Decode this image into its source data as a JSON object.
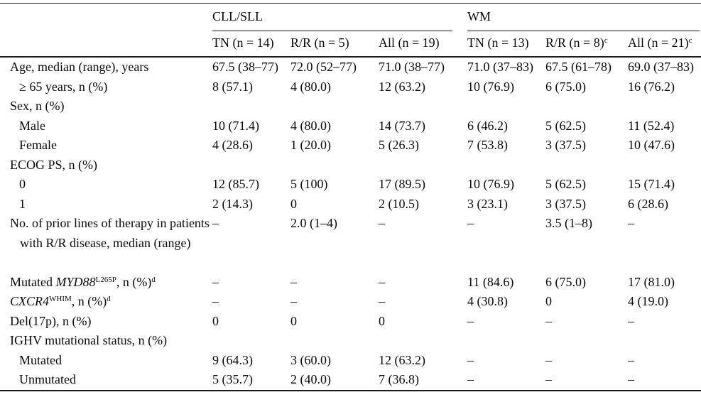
{
  "colors": {
    "background": "#ffffff",
    "text": "#0a0a0a",
    "rule": "#1c1c1c"
  },
  "table": {
    "groups": [
      {
        "label": "CLL/SLL"
      },
      {
        "label": "WM"
      }
    ],
    "sub_headers": [
      {
        "text": "TN (n = 14)",
        "sup": ""
      },
      {
        "text": "R/R (n = 5)",
        "sup": ""
      },
      {
        "text": "All (n = 19)",
        "sup": ""
      },
      {
        "text": "TN (n = 13)",
        "sup": ""
      },
      {
        "text": "R/R (n = 8)",
        "sup": "c"
      },
      {
        "text": "All (n = 21)",
        "sup": "c"
      }
    ],
    "rows": [
      {
        "label": [
          {
            "t": "Age, median (range), years"
          }
        ],
        "indent": 0,
        "cells": [
          "67.5 (38–77)",
          "72.0 (52–77)",
          "71.0 (38–77)",
          "71.0 (37–83)",
          "67.5 (61–78)",
          "69.0 (37–83)"
        ]
      },
      {
        "label": [
          {
            "t": "≥ 65 years, n (%)"
          }
        ],
        "indent": 1,
        "cells": [
          "8 (57.1)",
          "4 (80.0)",
          "12 (63.2)",
          "10 (76.9)",
          "6 (75.0)",
          "16 (76.2)"
        ]
      },
      {
        "label": [
          {
            "t": "Sex, n (%)"
          }
        ],
        "indent": 0,
        "cells": [
          "",
          "",
          "",
          "",
          "",
          ""
        ]
      },
      {
        "label": [
          {
            "t": "Male"
          }
        ],
        "indent": 1,
        "cells": [
          "10 (71.4)",
          "4 (80.0)",
          "14 (73.7)",
          "6 (46.2)",
          "5 (62.5)",
          "11 (52.4)"
        ]
      },
      {
        "label": [
          {
            "t": "Female"
          }
        ],
        "indent": 1,
        "cells": [
          "4 (28.6)",
          "1 (20.0)",
          "5 (26.3)",
          "7 (53.8)",
          "3 (37.5)",
          "10 (47.6)"
        ]
      },
      {
        "label": [
          {
            "t": "ECOG PS, n (%)"
          }
        ],
        "indent": 0,
        "cells": [
          "",
          "",
          "",
          "",
          "",
          ""
        ]
      },
      {
        "label": [
          {
            "t": "0"
          }
        ],
        "indent": 1,
        "cells": [
          "12 (85.7)",
          "5 (100)",
          "17 (89.5)",
          "10 (76.9)",
          "5 (62.5)",
          "15 (71.4)"
        ]
      },
      {
        "label": [
          {
            "t": "1"
          }
        ],
        "indent": 1,
        "cells": [
          "2 (14.3)",
          "0",
          "2 (10.5)",
          "3 (23.1)",
          "3 (37.5)",
          "6 (28.6)"
        ]
      },
      {
        "label": [
          {
            "t": "No. of prior lines of therapy in patients with R/R disease, median (range)"
          }
        ],
        "indent": 0,
        "hang": true,
        "tall": true,
        "cells": [
          "–",
          "2.0 (1–4)",
          "–",
          "–",
          "3.5 (1–8)",
          "–"
        ]
      },
      {
        "label": [
          {
            "t": "Mutated "
          },
          {
            "t": "MYD88",
            "i": true
          },
          {
            "t": "L265P",
            "sup": true
          },
          {
            "t": ", n (%)"
          },
          {
            "t": "d",
            "sup": true
          }
        ],
        "indent": 0,
        "cells": [
          "–",
          "–",
          "–",
          "11 (84.6)",
          "6 (75.0)",
          "17 (81.0)"
        ]
      },
      {
        "label": [
          {
            "t": "CXCR4",
            "i": true
          },
          {
            "t": "WHIM",
            "sup": true
          },
          {
            "t": ", n (%)"
          },
          {
            "t": "d",
            "sup": true
          }
        ],
        "indent": 0,
        "cells": [
          "–",
          "–",
          "–",
          "4 (30.8)",
          "0",
          "4 (19.0)"
        ]
      },
      {
        "label": [
          {
            "t": "Del(17p), n (%)"
          }
        ],
        "indent": 0,
        "cells": [
          "0",
          "0",
          "0",
          "–",
          "–",
          "–"
        ]
      },
      {
        "label": [
          {
            "t": "IGHV mutational status, n (%)"
          }
        ],
        "indent": 0,
        "cells": [
          "",
          "",
          "",
          "",
          "",
          ""
        ]
      },
      {
        "label": [
          {
            "t": "Mutated"
          }
        ],
        "indent": 1,
        "cells": [
          "9 (64.3)",
          "3 (60.0)",
          "12 (63.2)",
          "–",
          "–",
          "–"
        ]
      },
      {
        "label": [
          {
            "t": "Unmutated"
          }
        ],
        "indent": 1,
        "cells": [
          "5 (35.7)",
          "2 (40.0)",
          "7 (36.8)",
          "–",
          "–",
          "–"
        ]
      }
    ]
  }
}
